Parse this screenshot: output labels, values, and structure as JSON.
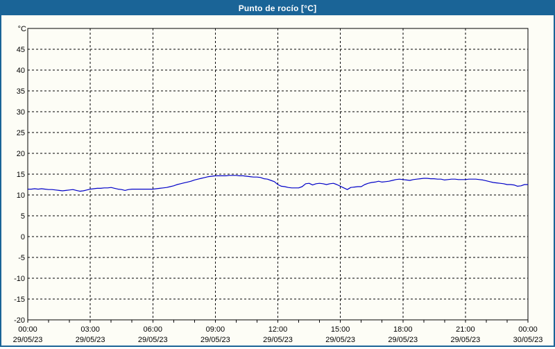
{
  "window": {
    "title": "Punto de rocío [°C]",
    "colors": {
      "titlebar": "#1a6497",
      "border": "#1a6497",
      "background": "#fdfdf6",
      "grid": "#000000",
      "axis": "#000000",
      "text": "#000000",
      "line": "#0000c8"
    }
  },
  "chart_data": {
    "type": "line",
    "title": "Punto de rocío [°C]",
    "ylabel": "°C",
    "xlabel": "",
    "ylim": [
      -20,
      50
    ],
    "yticks": [
      45,
      40,
      35,
      30,
      25,
      20,
      15,
      10,
      5,
      0,
      -5,
      -10,
      -15,
      -20
    ],
    "grid": "dashed",
    "legend": "none",
    "x_range_minutes": [
      0,
      1440
    ],
    "major_tick_minutes": 180,
    "minor_tick_minutes": 60,
    "xticks": [
      {
        "time": "00:00",
        "date": "29/05/23"
      },
      {
        "time": "03:00",
        "date": "29/05/23"
      },
      {
        "time": "06:00",
        "date": "29/05/23"
      },
      {
        "time": "09:00",
        "date": "29/05/23"
      },
      {
        "time": "12:00",
        "date": "29/05/23"
      },
      {
        "time": "15:00",
        "date": "29/05/23"
      },
      {
        "time": "18:00",
        "date": "29/05/23"
      },
      {
        "time": "21:00",
        "date": "29/05/23"
      },
      {
        "time": "00:00",
        "date": "30/05/23"
      }
    ],
    "series": [
      {
        "name": "Punto de rocío",
        "color": "#0000c8",
        "interval_minutes": 10,
        "start_time": "00:00",
        "values": [
          11.4,
          11.4,
          11.5,
          11.4,
          11.5,
          11.4,
          11.3,
          11.3,
          11.2,
          11.1,
          11.0,
          11.1,
          11.2,
          11.3,
          11.1,
          10.9,
          11.0,
          11.2,
          11.4,
          11.5,
          11.6,
          11.6,
          11.7,
          11.7,
          11.8,
          11.6,
          11.4,
          11.3,
          11.1,
          11.3,
          11.4,
          11.4,
          11.4,
          11.4,
          11.4,
          11.4,
          11.4,
          11.5,
          11.6,
          11.7,
          11.8,
          12.0,
          12.2,
          12.5,
          12.7,
          12.9,
          13.1,
          13.3,
          13.6,
          13.8,
          14.0,
          14.2,
          14.4,
          14.5,
          14.6,
          14.6,
          14.6,
          14.6,
          14.7,
          14.7,
          14.7,
          14.6,
          14.6,
          14.5,
          14.4,
          14.3,
          14.3,
          14.2,
          13.9,
          13.8,
          13.5,
          13.2,
          12.5,
          12.1,
          12.0,
          11.8,
          11.7,
          11.7,
          11.7,
          12.0,
          12.7,
          12.8,
          12.4,
          12.7,
          12.8,
          12.7,
          12.5,
          12.7,
          12.8,
          12.5,
          12.1,
          11.7,
          11.3,
          11.8,
          11.9,
          12.0,
          12.0,
          12.5,
          12.8,
          13.0,
          13.1,
          13.3,
          13.1,
          13.2,
          13.3,
          13.5,
          13.7,
          13.8,
          13.7,
          13.6,
          13.5,
          13.7,
          13.8,
          13.9,
          14.0,
          14.0,
          13.9,
          13.9,
          13.8,
          13.8,
          13.6,
          13.7,
          13.8,
          13.8,
          13.7,
          13.7,
          13.7,
          13.8,
          13.8,
          13.8,
          13.7,
          13.6,
          13.4,
          13.2,
          13.0,
          12.9,
          12.8,
          12.7,
          12.5,
          12.5,
          12.4,
          12.1,
          12.2,
          12.5,
          12.5
        ]
      }
    ]
  }
}
